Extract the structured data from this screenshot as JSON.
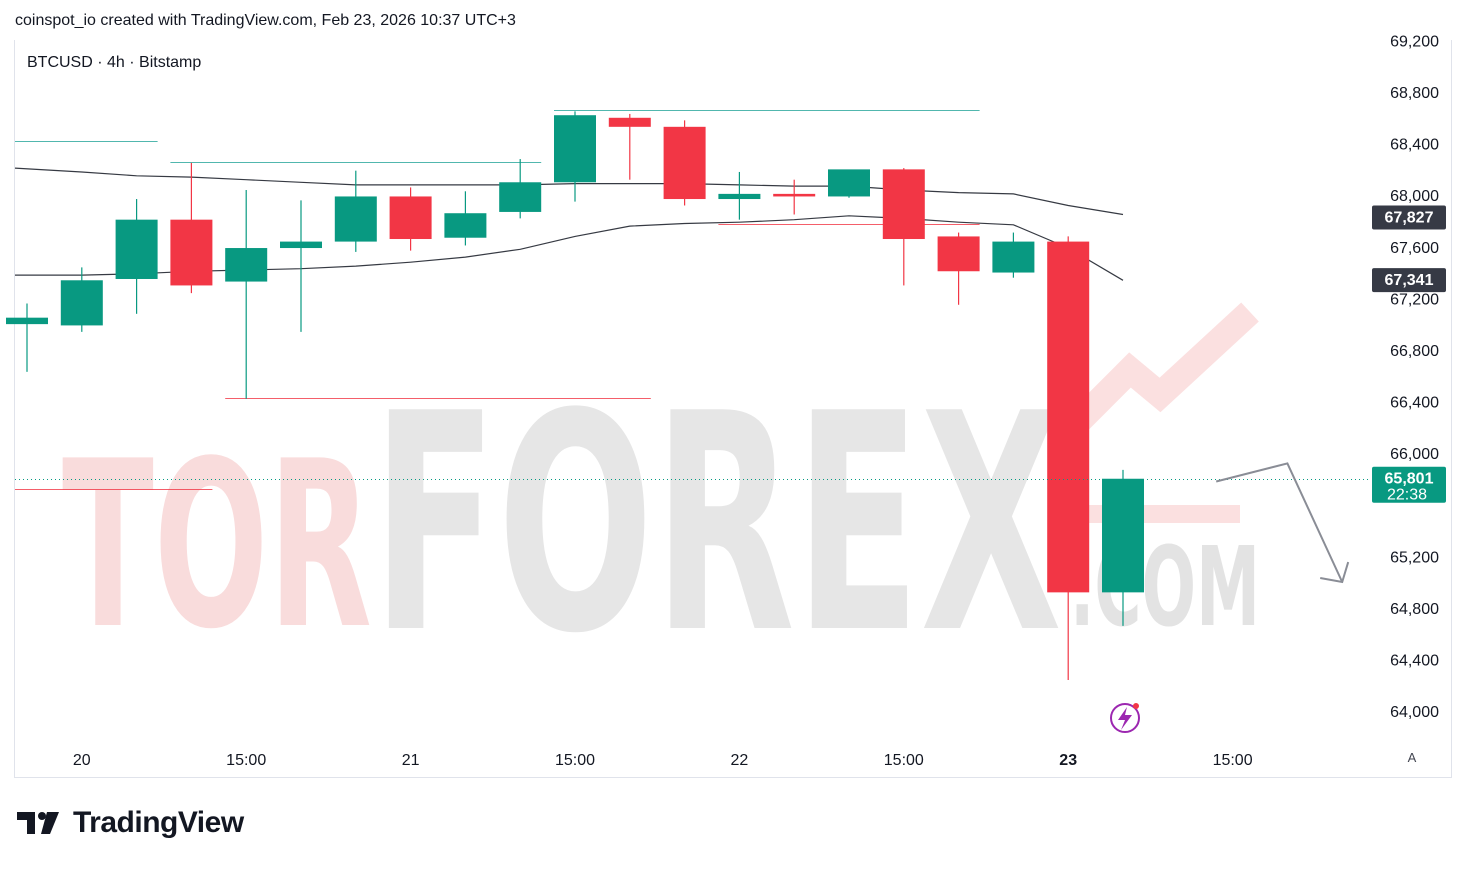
{
  "header": {
    "attribution": "coinspot_io created with TradingView.com, Feb 23, 2026 10:37 UTC+3"
  },
  "symbol": {
    "label": "BTCUSD · 4h · Bitstamp"
  },
  "watermark": {
    "text_left": "TOR",
    "text_mid": "FOREX",
    "text_right": ".COM"
  },
  "brand": {
    "name": "TradingView"
  },
  "auto_button": {
    "label": "A"
  },
  "colors": {
    "up": "#089981",
    "down": "#f23645",
    "level": "#26a69a",
    "downLevel": "#f23645",
    "ma": "#131722"
  },
  "chart_data": {
    "type": "candlestick",
    "title": "BTCUSD · 4h · Bitstamp",
    "y_ticks": [
      64000,
      64400,
      64800,
      65200,
      66000,
      66400,
      66800,
      67200,
      67600,
      68000,
      68400,
      68800,
      69200
    ],
    "y_range": [
      63900,
      69300
    ],
    "x_ticks": [
      {
        "index": 1,
        "label": "20"
      },
      {
        "index": 4,
        "label": "15:00"
      },
      {
        "index": 7,
        "label": "21"
      },
      {
        "index": 10,
        "label": "15:00"
      },
      {
        "index": 13,
        "label": "22"
      },
      {
        "index": 16,
        "label": "15:00"
      },
      {
        "index": 19,
        "label": "23"
      },
      {
        "index": 22,
        "label": "15:00"
      }
    ],
    "candles": [
      {
        "o": 67000,
        "h": 67160,
        "l": 66630,
        "c": 67050
      },
      {
        "o": 66990,
        "h": 67440,
        "l": 66940,
        "c": 67340
      },
      {
        "o": 67350,
        "h": 67970,
        "l": 67080,
        "c": 67810
      },
      {
        "o": 67810,
        "h": 68250,
        "l": 67240,
        "c": 67300
      },
      {
        "o": 67330,
        "h": 68040,
        "l": 66420,
        "c": 67590
      },
      {
        "o": 67590,
        "h": 67960,
        "l": 66940,
        "c": 67640
      },
      {
        "o": 67640,
        "h": 68190,
        "l": 67560,
        "c": 67990
      },
      {
        "o": 67990,
        "h": 68060,
        "l": 67570,
        "c": 67660
      },
      {
        "o": 67670,
        "h": 68030,
        "l": 67610,
        "c": 67860
      },
      {
        "o": 67870,
        "h": 68280,
        "l": 67820,
        "c": 68100
      },
      {
        "o": 68100,
        "h": 68650,
        "l": 67950,
        "c": 68620
      },
      {
        "o": 68600,
        "h": 68630,
        "l": 68120,
        "c": 68530
      },
      {
        "o": 68530,
        "h": 68580,
        "l": 67920,
        "c": 67970
      },
      {
        "o": 67970,
        "h": 68180,
        "l": 67810,
        "c": 68010
      },
      {
        "o": 68010,
        "h": 68120,
        "l": 67850,
        "c": 67990
      },
      {
        "o": 67990,
        "h": 68190,
        "l": 67980,
        "c": 68200
      },
      {
        "o": 68200,
        "h": 68210,
        "l": 67300,
        "c": 67660
      },
      {
        "o": 67680,
        "h": 67710,
        "l": 67150,
        "c": 67410
      },
      {
        "o": 67400,
        "h": 67710,
        "l": 67360,
        "c": 67640
      },
      {
        "o": 67640,
        "h": 67680,
        "l": 64240,
        "c": 64920
      },
      {
        "o": 64920,
        "h": 65870,
        "l": 64660,
        "c": 65801
      }
    ],
    "moving_averages": [
      {
        "values": [
          68210,
          68180,
          68150,
          68140,
          68120,
          68100,
          68080,
          68080,
          68080,
          68080,
          68090,
          68090,
          68090,
          68080,
          68070,
          68070,
          68040,
          68020,
          68010,
          67920,
          67850
        ]
      },
      {
        "values": [
          67380,
          67380,
          67390,
          67410,
          67420,
          67430,
          67450,
          67480,
          67520,
          67580,
          67680,
          67760,
          67780,
          67790,
          67810,
          67840,
          67820,
          67790,
          67770,
          67590,
          67340
        ]
      }
    ],
    "levels": [
      {
        "price": 68420,
        "from": 0,
        "to": 2,
        "color": "level"
      },
      {
        "price": 68260,
        "from": 3,
        "to": 9,
        "color": "level"
      },
      {
        "price": 68660,
        "from": 10,
        "to": 17,
        "color": "level"
      },
      {
        "price": 67780,
        "from": 13,
        "to": 17,
        "color": "downLevel"
      },
      {
        "price": 66430,
        "from": 4,
        "to": 11,
        "color": "downLevel"
      },
      {
        "price": 65720,
        "from": 0,
        "to": 3,
        "color": "downLevel"
      }
    ],
    "price_labels": [
      {
        "value": "67,827",
        "price": 67827,
        "bg": "#363a45"
      },
      {
        "value": "67,341",
        "price": 67341,
        "bg": "#363a45"
      },
      {
        "value": "65,801",
        "price": 65801,
        "bg": "#089981",
        "sub": "22:38"
      }
    ],
    "current_price": 65801,
    "forecast_arrow": [
      {
        "index": 21.7,
        "price": 65780
      },
      {
        "index": 23.0,
        "price": 65920
      },
      {
        "index": 24.0,
        "price": 65000
      }
    ]
  }
}
